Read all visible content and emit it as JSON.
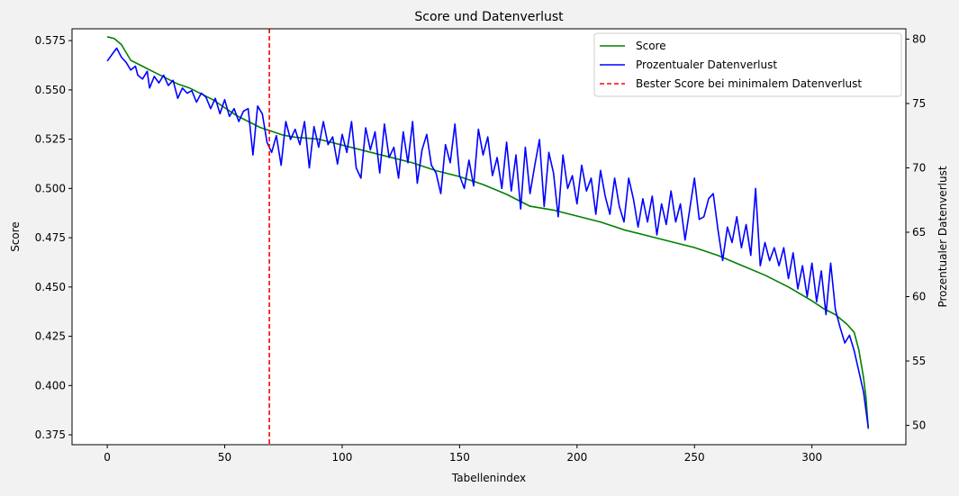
{
  "chart_data": {
    "type": "line",
    "title": "Score und Datenverlust",
    "xlabel": "Tabellenindex",
    "ylabel": "Score",
    "ylabel_right": "Prozentualer Datenverlust",
    "xlim": [
      -15,
      340
    ],
    "ylim": [
      0.37,
      0.581
    ],
    "ylim_right": [
      48.5,
      80.8
    ],
    "xticks": [
      0,
      50,
      100,
      150,
      200,
      250,
      300
    ],
    "yticks": [
      0.375,
      0.4,
      0.425,
      0.45,
      0.475,
      0.5,
      0.525,
      0.55,
      0.575
    ],
    "yticks_right": [
      50,
      55,
      60,
      65,
      70,
      75,
      80
    ],
    "ytick_labels": [
      "0.375",
      "0.400",
      "0.425",
      "0.450",
      "0.475",
      "0.500",
      "0.525",
      "0.550",
      "0.575"
    ],
    "grid": false,
    "legend_position": "top-right",
    "series": [
      {
        "name": "Score",
        "axis": "left",
        "color": "#008000",
        "points": [
          [
            0,
            0.577
          ],
          [
            3,
            0.576
          ],
          [
            6,
            0.573
          ],
          [
            10,
            0.565
          ],
          [
            15,
            0.562
          ],
          [
            20,
            0.559
          ],
          [
            25,
            0.556
          ],
          [
            30,
            0.553
          ],
          [
            35,
            0.551
          ],
          [
            40,
            0.548
          ],
          [
            45,
            0.545
          ],
          [
            50,
            0.541
          ],
          [
            55,
            0.537
          ],
          [
            60,
            0.534
          ],
          [
            65,
            0.531
          ],
          [
            70,
            0.529
          ],
          [
            75,
            0.527
          ],
          [
            80,
            0.526
          ],
          [
            90,
            0.525
          ],
          [
            100,
            0.522
          ],
          [
            110,
            0.519
          ],
          [
            120,
            0.516
          ],
          [
            130,
            0.513
          ],
          [
            140,
            0.509
          ],
          [
            150,
            0.506
          ],
          [
            160,
            0.502
          ],
          [
            170,
            0.497
          ],
          [
            175,
            0.494
          ],
          [
            180,
            0.491
          ],
          [
            190,
            0.489
          ],
          [
            200,
            0.486
          ],
          [
            210,
            0.483
          ],
          [
            220,
            0.479
          ],
          [
            230,
            0.476
          ],
          [
            240,
            0.473
          ],
          [
            250,
            0.47
          ],
          [
            260,
            0.466
          ],
          [
            270,
            0.461
          ],
          [
            280,
            0.456
          ],
          [
            290,
            0.45
          ],
          [
            300,
            0.443
          ],
          [
            305,
            0.439
          ],
          [
            310,
            0.436
          ],
          [
            315,
            0.431
          ],
          [
            318,
            0.427
          ],
          [
            320,
            0.418
          ],
          [
            322,
            0.404
          ],
          [
            323,
            0.394
          ],
          [
            324,
            0.378
          ]
        ]
      },
      {
        "name": "Prozentualer Datenverlust",
        "axis": "right",
        "color": "#0000ff",
        "points": [
          [
            0,
            78.3
          ],
          [
            2,
            78.8
          ],
          [
            4,
            79.3
          ],
          [
            6,
            78.6
          ],
          [
            8,
            78.2
          ],
          [
            10,
            77.6
          ],
          [
            12,
            77.9
          ],
          [
            13,
            77.2
          ],
          [
            15,
            76.9
          ],
          [
            17,
            77.5
          ],
          [
            18,
            76.2
          ],
          [
            20,
            77.1
          ],
          [
            22,
            76.6
          ],
          [
            24,
            77.2
          ],
          [
            26,
            76.4
          ],
          [
            28,
            76.8
          ],
          [
            30,
            75.4
          ],
          [
            32,
            76.2
          ],
          [
            34,
            75.8
          ],
          [
            36,
            76.0
          ],
          [
            38,
            75.1
          ],
          [
            40,
            75.8
          ],
          [
            42,
            75.5
          ],
          [
            44,
            74.6
          ],
          [
            46,
            75.4
          ],
          [
            48,
            74.2
          ],
          [
            50,
            75.3
          ],
          [
            52,
            74.0
          ],
          [
            54,
            74.6
          ],
          [
            56,
            73.6
          ],
          [
            58,
            74.4
          ],
          [
            60,
            74.6
          ],
          [
            62,
            71.0
          ],
          [
            64,
            74.8
          ],
          [
            66,
            74.2
          ],
          [
            68,
            72.0
          ],
          [
            70,
            71.2
          ],
          [
            72,
            72.5
          ],
          [
            74,
            70.2
          ],
          [
            76,
            73.6
          ],
          [
            78,
            72.2
          ],
          [
            80,
            73.0
          ],
          [
            82,
            71.8
          ],
          [
            84,
            73.6
          ],
          [
            86,
            70.0
          ],
          [
            88,
            73.2
          ],
          [
            90,
            71.6
          ],
          [
            92,
            73.6
          ],
          [
            94,
            71.8
          ],
          [
            96,
            72.4
          ],
          [
            98,
            70.3
          ],
          [
            100,
            72.6
          ],
          [
            102,
            71.2
          ],
          [
            104,
            73.6
          ],
          [
            106,
            70.0
          ],
          [
            108,
            69.2
          ],
          [
            110,
            73.1
          ],
          [
            112,
            71.4
          ],
          [
            114,
            72.8
          ],
          [
            116,
            69.6
          ],
          [
            118,
            73.4
          ],
          [
            120,
            70.8
          ],
          [
            122,
            71.6
          ],
          [
            124,
            69.2
          ],
          [
            126,
            72.8
          ],
          [
            128,
            70.4
          ],
          [
            130,
            73.6
          ],
          [
            132,
            68.8
          ],
          [
            134,
            71.4
          ],
          [
            136,
            72.6
          ],
          [
            138,
            70.2
          ],
          [
            140,
            69.6
          ],
          [
            142,
            68.0
          ],
          [
            144,
            71.8
          ],
          [
            146,
            70.4
          ],
          [
            148,
            73.4
          ],
          [
            150,
            69.4
          ],
          [
            152,
            68.4
          ],
          [
            154,
            70.6
          ],
          [
            156,
            68.6
          ],
          [
            158,
            73.0
          ],
          [
            160,
            71.0
          ],
          [
            162,
            72.4
          ],
          [
            164,
            69.4
          ],
          [
            166,
            70.8
          ],
          [
            168,
            68.4
          ],
          [
            170,
            72.0
          ],
          [
            172,
            68.2
          ],
          [
            174,
            71.0
          ],
          [
            176,
            66.8
          ],
          [
            178,
            71.6
          ],
          [
            180,
            68.0
          ],
          [
            182,
            70.2
          ],
          [
            184,
            72.2
          ],
          [
            186,
            67.0
          ],
          [
            188,
            71.2
          ],
          [
            190,
            69.6
          ],
          [
            192,
            66.2
          ],
          [
            194,
            71.0
          ],
          [
            196,
            68.4
          ],
          [
            198,
            69.4
          ],
          [
            200,
            67.2
          ],
          [
            202,
            70.2
          ],
          [
            204,
            68.2
          ],
          [
            206,
            69.2
          ],
          [
            208,
            66.4
          ],
          [
            210,
            69.8
          ],
          [
            212,
            67.8
          ],
          [
            214,
            66.4
          ],
          [
            216,
            69.2
          ],
          [
            218,
            67.0
          ],
          [
            220,
            65.8
          ],
          [
            222,
            69.2
          ],
          [
            224,
            67.6
          ],
          [
            226,
            65.4
          ],
          [
            228,
            67.6
          ],
          [
            230,
            65.8
          ],
          [
            232,
            67.8
          ],
          [
            234,
            64.8
          ],
          [
            236,
            67.2
          ],
          [
            238,
            65.6
          ],
          [
            240,
            68.2
          ],
          [
            242,
            65.8
          ],
          [
            244,
            67.2
          ],
          [
            246,
            64.4
          ],
          [
            248,
            66.8
          ],
          [
            250,
            69.2
          ],
          [
            252,
            66.0
          ],
          [
            254,
            66.2
          ],
          [
            256,
            67.6
          ],
          [
            258,
            68.0
          ],
          [
            260,
            65.2
          ],
          [
            262,
            62.8
          ],
          [
            264,
            65.4
          ],
          [
            266,
            64.2
          ],
          [
            268,
            66.2
          ],
          [
            270,
            63.8
          ],
          [
            272,
            65.6
          ],
          [
            274,
            63.2
          ],
          [
            276,
            68.4
          ],
          [
            278,
            62.4
          ],
          [
            280,
            64.2
          ],
          [
            282,
            62.8
          ],
          [
            284,
            63.8
          ],
          [
            286,
            62.4
          ],
          [
            288,
            63.8
          ],
          [
            290,
            61.4
          ],
          [
            292,
            63.4
          ],
          [
            294,
            60.6
          ],
          [
            296,
            62.4
          ],
          [
            298,
            60.0
          ],
          [
            300,
            62.6
          ],
          [
            302,
            59.6
          ],
          [
            304,
            62.0
          ],
          [
            306,
            58.6
          ],
          [
            308,
            62.6
          ],
          [
            310,
            59.0
          ],
          [
            312,
            57.6
          ],
          [
            314,
            56.4
          ],
          [
            316,
            57.0
          ],
          [
            318,
            55.8
          ],
          [
            320,
            54.2
          ],
          [
            322,
            52.6
          ],
          [
            324,
            49.8
          ]
        ]
      },
      {
        "name": "Bester Score bei minimalem Datenverlust",
        "axis": "left",
        "color": "#ff0000",
        "type": "vline",
        "x": 69
      }
    ]
  }
}
